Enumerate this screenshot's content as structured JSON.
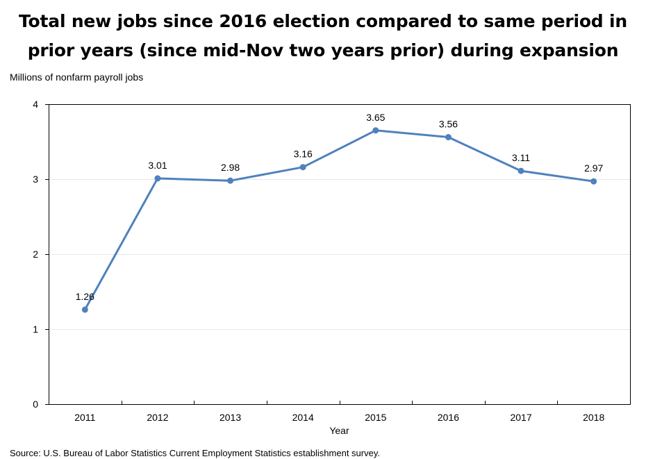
{
  "chart_data": {
    "type": "line",
    "title_lines": [
      "Total new jobs since 2016 election compared to same period in",
      "prior years (since mid-Nov two years prior) during expansion"
    ],
    "ylabel": "Millions of nonfarm payroll jobs",
    "xlabel": "Year",
    "categories": [
      "2011",
      "2012",
      "2013",
      "2014",
      "2015",
      "2016",
      "2017",
      "2018"
    ],
    "series": [
      {
        "name": "Total new jobs",
        "values": [
          1.26,
          3.01,
          2.98,
          3.16,
          3.65,
          3.56,
          3.11,
          2.97
        ],
        "labels": [
          "1.26",
          "3.01",
          "2.98",
          "3.16",
          "3.65",
          "3.56",
          "3.11",
          "2.97"
        ],
        "color": "#4f81bd"
      }
    ],
    "ylim": [
      0,
      4
    ],
    "yticks": [
      0,
      1,
      2,
      3,
      4
    ],
    "grid": true,
    "gridline_color": "#e6e6e6",
    "source": "Source: U.S. Bureau of Labor Statistics Current Employment Statistics establishment survey."
  }
}
